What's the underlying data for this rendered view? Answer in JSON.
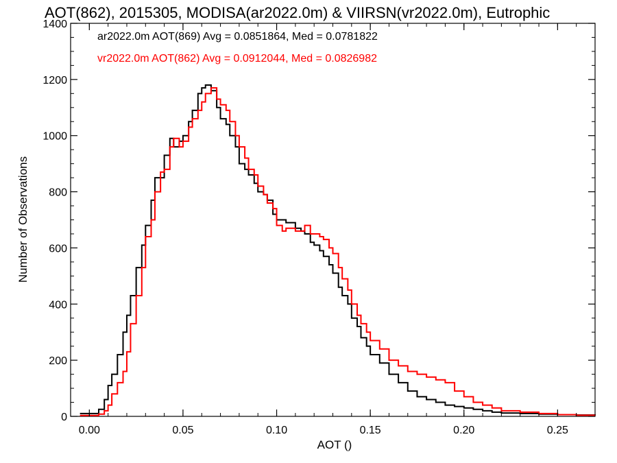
{
  "chart_data": {
    "type": "line",
    "title": "AOT(862), 2015305, MODISA(ar2022.0m) & VIIRSN(vr2022.0m), Eutrophic",
    "xlabel": "AOT ()",
    "ylabel": "Number of Observations",
    "xlim": [
      -0.01,
      0.27
    ],
    "ylim": [
      0,
      1400
    ],
    "xticks": [
      0.0,
      0.05,
      0.1,
      0.15,
      0.2,
      0.25
    ],
    "xtick_labels": [
      "0.00",
      "0.05",
      "0.10",
      "0.15",
      "0.20",
      "0.25"
    ],
    "yticks": [
      0,
      200,
      400,
      600,
      800,
      1000,
      1200,
      1400
    ],
    "ytick_labels": [
      "0",
      "200",
      "400",
      "600",
      "800",
      "1000",
      "1200",
      "1400"
    ],
    "legend_placement": "top-left",
    "step_histogram": true,
    "series": [
      {
        "name": "ar2022.0m AOT(869) Avg = 0.0851864, Med = 0.0781822",
        "color": "#000000",
        "x": [
          -0.005,
          0.0,
          0.005,
          0.008,
          0.01,
          0.012,
          0.015,
          0.018,
          0.02,
          0.022,
          0.025,
          0.028,
          0.03,
          0.033,
          0.035,
          0.038,
          0.04,
          0.043,
          0.045,
          0.048,
          0.05,
          0.053,
          0.055,
          0.058,
          0.06,
          0.062,
          0.065,
          0.068,
          0.07,
          0.073,
          0.075,
          0.078,
          0.08,
          0.083,
          0.085,
          0.088,
          0.09,
          0.093,
          0.095,
          0.098,
          0.1,
          0.103,
          0.105,
          0.108,
          0.11,
          0.113,
          0.115,
          0.118,
          0.12,
          0.123,
          0.125,
          0.128,
          0.13,
          0.133,
          0.135,
          0.138,
          0.14,
          0.143,
          0.145,
          0.148,
          0.15,
          0.155,
          0.16,
          0.165,
          0.17,
          0.175,
          0.18,
          0.185,
          0.19,
          0.195,
          0.2,
          0.205,
          0.21,
          0.215,
          0.22,
          0.23,
          0.24,
          0.25,
          0.26,
          0.27
        ],
        "values": [
          10,
          10,
          25,
          60,
          110,
          150,
          220,
          300,
          360,
          430,
          530,
          610,
          680,
          770,
          850,
          850,
          930,
          990,
          960,
          980,
          1000,
          1050,
          1090,
          1150,
          1170,
          1180,
          1160,
          1100,
          1060,
          1040,
          1000,
          960,
          900,
          880,
          860,
          830,
          800,
          790,
          770,
          720,
          700,
          700,
          690,
          690,
          670,
          660,
          650,
          620,
          610,
          590,
          570,
          540,
          510,
          460,
          430,
          400,
          350,
          320,
          280,
          250,
          220,
          190,
          150,
          120,
          90,
          70,
          60,
          50,
          40,
          35,
          30,
          25,
          20,
          15,
          12,
          10,
          8,
          6,
          5,
          4
        ]
      },
      {
        "name": "vr2022.0m AOT(862) Avg = 0.0912044, Med = 0.0826982",
        "color": "#ff0000",
        "x": [
          -0.005,
          0.0,
          0.005,
          0.008,
          0.01,
          0.012,
          0.015,
          0.018,
          0.02,
          0.022,
          0.025,
          0.028,
          0.03,
          0.033,
          0.035,
          0.038,
          0.04,
          0.043,
          0.045,
          0.048,
          0.05,
          0.053,
          0.055,
          0.058,
          0.06,
          0.062,
          0.065,
          0.068,
          0.07,
          0.073,
          0.075,
          0.078,
          0.08,
          0.083,
          0.085,
          0.088,
          0.09,
          0.093,
          0.095,
          0.098,
          0.1,
          0.103,
          0.105,
          0.108,
          0.11,
          0.113,
          0.115,
          0.118,
          0.12,
          0.123,
          0.125,
          0.128,
          0.13,
          0.133,
          0.135,
          0.138,
          0.14,
          0.143,
          0.145,
          0.148,
          0.15,
          0.155,
          0.16,
          0.165,
          0.17,
          0.175,
          0.18,
          0.185,
          0.19,
          0.195,
          0.2,
          0.205,
          0.21,
          0.215,
          0.22,
          0.23,
          0.24,
          0.25,
          0.26,
          0.27
        ],
        "values": [
          3,
          3,
          8,
          20,
          40,
          80,
          120,
          160,
          230,
          330,
          430,
          530,
          640,
          700,
          800,
          870,
          880,
          960,
          990,
          960,
          980,
          1030,
          1060,
          1090,
          1120,
          1150,
          1170,
          1130,
          1110,
          1090,
          1050,
          1000,
          960,
          920,
          880,
          860,
          820,
          790,
          760,
          740,
          680,
          660,
          670,
          670,
          660,
          660,
          680,
          650,
          650,
          640,
          630,
          600,
          580,
          530,
          490,
          450,
          400,
          360,
          330,
          300,
          270,
          240,
          200,
          180,
          160,
          150,
          140,
          130,
          120,
          90,
          70,
          50,
          40,
          30,
          20,
          15,
          10,
          6,
          4,
          3
        ]
      }
    ]
  }
}
